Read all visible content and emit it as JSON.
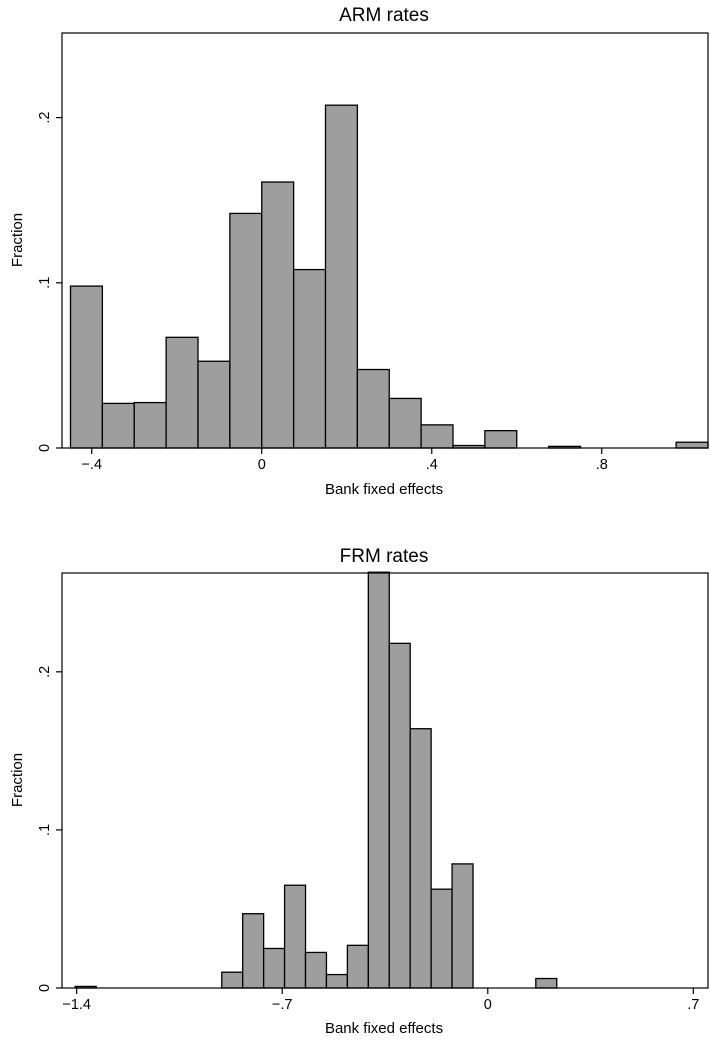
{
  "chart_data": [
    {
      "type": "bar",
      "title": "ARM rates",
      "xlabel": "Bank fixed effects",
      "ylabel": "Fraction",
      "xlim": [
        -0.47,
        1.05
      ],
      "ylim": [
        0,
        0.2512
      ],
      "xticks": [
        {
          "value": -0.4,
          "label": "−.4"
        },
        {
          "value": 0,
          "label": "0"
        },
        {
          "value": 0.4,
          "label": ".4"
        },
        {
          "value": 0.8,
          "label": ".8"
        }
      ],
      "yticks": [
        {
          "value": 0,
          "label": "0"
        },
        {
          "value": 0.1,
          "label": ".1"
        },
        {
          "value": 0.2,
          "label": ".2"
        }
      ],
      "bin_start": -0.45,
      "bin_width": 0.075,
      "values": [
        0.098,
        0.027,
        0.0275,
        0.067,
        0.0525,
        0.142,
        0.161,
        0.108,
        0.2075,
        0.0475,
        0.03,
        0.014,
        0.0015,
        0.0105,
        0,
        0.001,
        0,
        0,
        0,
        0.0035
      ]
    },
    {
      "type": "bar",
      "title": "FRM rates",
      "xlabel": "Bank fixed effects",
      "ylabel": "Fraction",
      "xlim": [
        -1.45,
        0.75
      ],
      "ylim": [
        0,
        0.2625
      ],
      "xticks": [
        {
          "value": -1.4,
          "label": "−1.4"
        },
        {
          "value": -0.7,
          "label": "−.7"
        },
        {
          "value": 0,
          "label": "0"
        },
        {
          "value": 0.7,
          "label": ".7"
        }
      ],
      "yticks": [
        {
          "value": 0,
          "label": "0"
        },
        {
          "value": 0.1,
          "label": ".1"
        },
        {
          "value": 0.2,
          "label": ".2"
        }
      ],
      "bin_start": -1.405,
      "bin_width": 0.0713,
      "values": [
        0.001,
        0,
        0,
        0,
        0,
        0,
        0,
        0.01,
        0.047,
        0.025,
        0.065,
        0.0225,
        0.0085,
        0.027,
        0.263,
        0.218,
        0.164,
        0.0625,
        0.0785,
        0,
        0,
        0,
        0.006
      ]
    }
  ]
}
